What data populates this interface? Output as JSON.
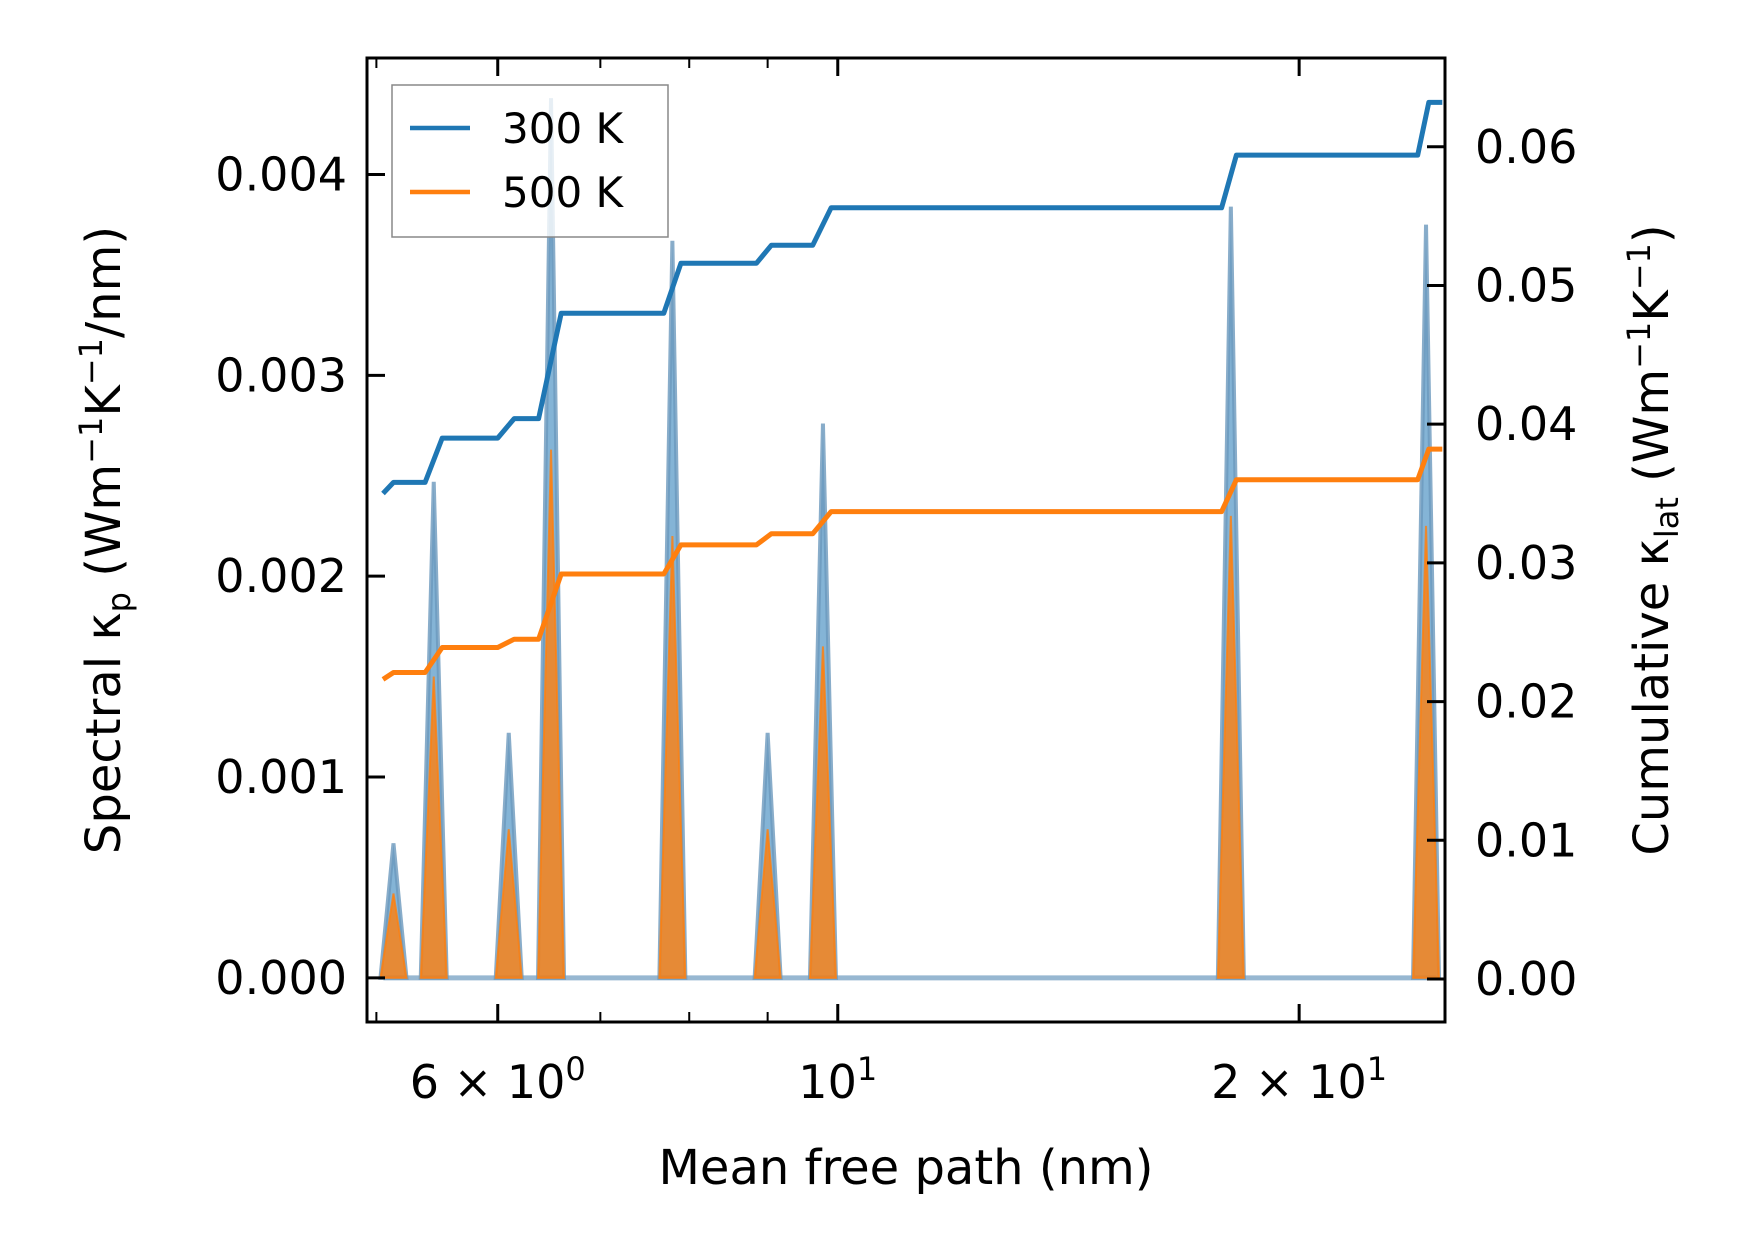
{
  "chart_data": {
    "type": "line",
    "xscale": "log",
    "xlabel": "Mean free path (nm)",
    "xlim": [
      4.93,
      24.9
    ],
    "xticks": [
      {
        "value": 6,
        "base": "6",
        "op": "×",
        "mant": "10",
        "exp": "0"
      },
      {
        "value": 10,
        "base": "",
        "op": "",
        "mant": "10",
        "exp": "1"
      },
      {
        "value": 20,
        "base": "2",
        "op": "×",
        "mant": "10",
        "exp": "1"
      }
    ],
    "ylabel_left": {
      "pre": "Spectral κ",
      "sub": "p",
      "mid": " (Wm",
      "sup1": "−1",
      "mid2": "K",
      "sup2": "−1",
      "post": "/nm)"
    },
    "ylim_left": [
      -0.00022,
      0.00458
    ],
    "yticks_left": [
      "0.000",
      "0.001",
      "0.002",
      "0.003",
      "0.004"
    ],
    "ylabel_right": {
      "pre": "Cumulative κ",
      "sub": "lat",
      "mid": " (Wm",
      "sup1": "−1",
      "mid2": "K",
      "sup2": "−1",
      "post": ")"
    },
    "ylim_right": [
      -0.0031,
      0.0664
    ],
    "yticks_right": [
      "0.00",
      "0.01",
      "0.02",
      "0.03",
      "0.04",
      "0.05",
      "0.06"
    ],
    "legend": {
      "position": "upper-left",
      "entries": [
        "300 K",
        "500 K"
      ]
    },
    "colors": {
      "s300": "#1f77b4",
      "s500": "#ff7f0e",
      "spectral_edge": "#6b98bd",
      "spectral_fill_300": "#1f77b4",
      "spectral_fill_500": "#ff7f0e"
    },
    "spectral_peaks": [
      {
        "x": 5.13,
        "y300": 0.00067,
        "y500": 0.00042
      },
      {
        "x": 5.45,
        "y300": 0.00247,
        "y500": 0.0015
      },
      {
        "x": 6.1,
        "y300": 0.00122,
        "y500": 0.00074
      },
      {
        "x": 6.5,
        "y300": 0.00438,
        "y500": 0.00263
      },
      {
        "x": 7.8,
        "y300": 0.00367,
        "y500": 0.0022
      },
      {
        "x": 9.0,
        "y300": 0.00122,
        "y500": 0.00074
      },
      {
        "x": 9.78,
        "y300": 0.00276,
        "y500": 0.00165
      },
      {
        "x": 18.05,
        "y300": 0.00384,
        "y500": 0.0023
      },
      {
        "x": 24.2,
        "y300": 0.00375,
        "y500": 0.00225
      }
    ],
    "series": [
      {
        "name": "300 K",
        "axis": "right",
        "points": [
          [
            5.05,
            0.035
          ],
          [
            5.13,
            0.0358
          ],
          [
            5.38,
            0.0358
          ],
          [
            5.52,
            0.039
          ],
          [
            6.0,
            0.039
          ],
          [
            6.15,
            0.0404
          ],
          [
            6.38,
            0.0404
          ],
          [
            6.6,
            0.048
          ],
          [
            7.7,
            0.048
          ],
          [
            7.9,
            0.0516
          ],
          [
            8.85,
            0.0516
          ],
          [
            9.05,
            0.0529
          ],
          [
            9.63,
            0.0529
          ],
          [
            9.9,
            0.0556
          ],
          [
            17.8,
            0.0556
          ],
          [
            18.2,
            0.0594
          ],
          [
            23.9,
            0.0594
          ],
          [
            24.3,
            0.0632
          ],
          [
            24.8,
            0.0632
          ]
        ]
      },
      {
        "name": "500 K",
        "axis": "right",
        "points": [
          [
            5.05,
            0.0216
          ],
          [
            5.13,
            0.0221
          ],
          [
            5.38,
            0.0221
          ],
          [
            5.52,
            0.0239
          ],
          [
            6.0,
            0.0239
          ],
          [
            6.15,
            0.0245
          ],
          [
            6.38,
            0.0245
          ],
          [
            6.6,
            0.0292
          ],
          [
            7.7,
            0.0292
          ],
          [
            7.9,
            0.0313
          ],
          [
            8.85,
            0.0313
          ],
          [
            9.05,
            0.0321
          ],
          [
            9.63,
            0.0321
          ],
          [
            9.9,
            0.0337
          ],
          [
            17.8,
            0.0337
          ],
          [
            18.2,
            0.036
          ],
          [
            23.9,
            0.036
          ],
          [
            24.3,
            0.0382
          ],
          [
            24.8,
            0.0382
          ]
        ]
      }
    ]
  }
}
